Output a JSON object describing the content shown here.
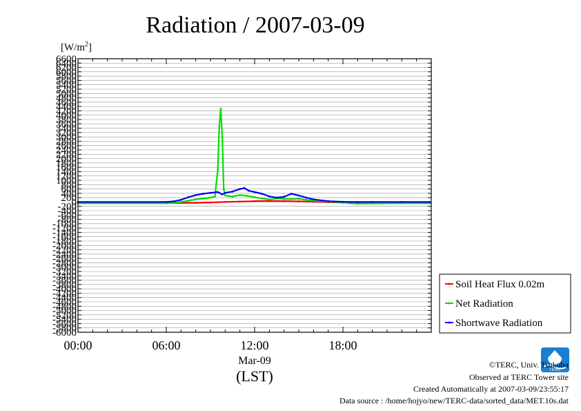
{
  "chart_data": {
    "type": "line",
    "title": "Radiation / 2007-03-09",
    "ylabel_unit": "[W/m",
    "ylabel_unit_sup": "2",
    "ylabel_unit_close": "]",
    "ylim": [
      -6000,
      6600
    ],
    "yticks": [
      6600,
      6400,
      6200,
      6000,
      5800,
      5600,
      5400,
      5200,
      5000,
      4800,
      4600,
      4400,
      4200,
      4000,
      3800,
      3600,
      3400,
      3200,
      3000,
      2800,
      2600,
      2400,
      2200,
      2000,
      1800,
      1600,
      1400,
      1200,
      1000,
      800,
      600,
      400,
      200,
      0,
      -200,
      -400,
      -600,
      -800,
      -1000,
      -1200,
      -1400,
      -1600,
      -1800,
      -2000,
      -2200,
      -2400,
      -2600,
      -2800,
      -3000,
      -3200,
      -3400,
      -3600,
      -3800,
      -4000,
      -4200,
      -4400,
      -4600,
      -4800,
      -5000,
      -5200,
      -5400,
      -5600,
      -5800,
      -6000
    ],
    "xlim": [
      0,
      24
    ],
    "xticks": [
      {
        "v": 0,
        "label": "00:00"
      },
      {
        "v": 6,
        "label": "06:00"
      },
      {
        "v": 12,
        "label": "12:00"
      },
      {
        "v": 18,
        "label": "18:00"
      }
    ],
    "xlabel_date": "Mar-09",
    "xlabel": "(LST)",
    "grid": true,
    "legend_position": "bottom-right outside",
    "series": [
      {
        "name": "Soil Heat Flux 0.02m",
        "color": "#ff0000",
        "x": [
          0,
          6,
          8,
          9,
          10,
          11,
          12,
          13,
          14,
          15,
          16,
          17,
          18,
          20,
          22,
          23.9
        ],
        "y": [
          -50,
          -50,
          -40,
          -20,
          0,
          20,
          40,
          50,
          40,
          30,
          10,
          -10,
          -30,
          -40,
          -45,
          -50
        ]
      },
      {
        "name": "Net Radiation",
        "color": "#00dd00",
        "x": [
          0,
          6,
          6.5,
          7,
          7.5,
          8,
          8.5,
          9,
          9.3,
          9.5,
          9.6,
          9.7,
          9.8,
          9.9,
          10,
          10.5,
          11,
          11.5,
          12,
          12.5,
          13,
          13.5,
          14,
          14.5,
          15,
          15.5,
          16,
          17,
          18,
          18.5,
          19,
          20,
          22,
          23.9
        ],
        "y": [
          -60,
          -60,
          -40,
          0,
          60,
          120,
          160,
          200,
          250,
          1500,
          3500,
          4300,
          3000,
          600,
          300,
          250,
          320,
          280,
          220,
          160,
          120,
          160,
          140,
          130,
          150,
          100,
          60,
          20,
          -20,
          -60,
          -80,
          -70,
          -60,
          -60
        ]
      },
      {
        "name": "Shortwave Radiation",
        "color": "#0000ff",
        "x": [
          0,
          6,
          6.5,
          7,
          7.5,
          8,
          8.5,
          9,
          9.5,
          9.8,
          10,
          10.5,
          11,
          11.3,
          11.6,
          12,
          12.5,
          13,
          13.5,
          14,
          14.5,
          15,
          15.5,
          16,
          17,
          18,
          18.5,
          19,
          20,
          22,
          23.9
        ],
        "y": [
          0,
          0,
          30,
          100,
          220,
          320,
          380,
          420,
          460,
          350,
          420,
          480,
          600,
          640,
          520,
          460,
          380,
          260,
          200,
          240,
          380,
          300,
          200,
          120,
          40,
          10,
          0,
          0,
          0,
          0,
          0
        ]
      }
    ]
  },
  "credits": {
    "copyright": "©TERC, Univ. Tsukuba",
    "observed": "Observed at TERC Tower site",
    "created": "Created Automatically at 2007-03-09/23:55:17",
    "source": "Data source : /home/hojyo/new/TERC-data/sorted_data/MET.10s.dat"
  },
  "logo": {
    "text": "TERC",
    "color": "#1a7fd0"
  }
}
